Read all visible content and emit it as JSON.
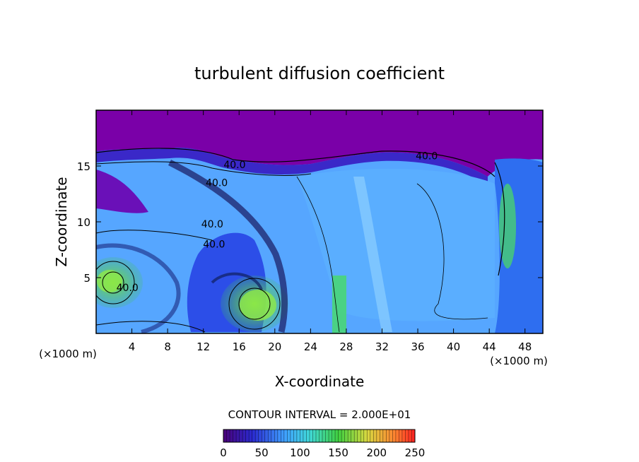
{
  "chart_data": {
    "type": "heatmap",
    "title": "turbulent diffusion coefficient",
    "xlabel": "X-coordinate",
    "ylabel": "Z-coordinate",
    "x_unit_left": "(×1000 m)",
    "x_unit_right": "(×1000 m)",
    "xlim": [
      0,
      50
    ],
    "ylim": [
      0,
      20
    ],
    "x_ticks": [
      4,
      8,
      12,
      16,
      20,
      24,
      28,
      32,
      36,
      40,
      44,
      48
    ],
    "y_ticks": [
      5,
      10,
      15
    ],
    "contour_interval_text": "CONTOUR INTERVAL = 2.000E+01",
    "contour_labels": [
      {
        "text": "40.0",
        "x": 15.5,
        "z": 14.8
      },
      {
        "text": "40.0",
        "x": 13.5,
        "z": 13.2
      },
      {
        "text": "40.0",
        "x": 13.0,
        "z": 9.5
      },
      {
        "text": "40.0",
        "x": 13.2,
        "z": 7.7
      },
      {
        "text": "40.0",
        "x": 37.0,
        "z": 15.6
      },
      {
        "text": "40.0",
        "x": 3.5,
        "z": 3.8
      }
    ],
    "colorbar": {
      "min": 0,
      "max": 250,
      "ticks": [
        0,
        50,
        100,
        150,
        200,
        250
      ]
    },
    "colors": {
      "low": "#7a00a8",
      "mid_low": "#3a6cff",
      "mid": "#5ab4ff",
      "high": "#4cd84c",
      "top": "#ff2a20"
    }
  }
}
